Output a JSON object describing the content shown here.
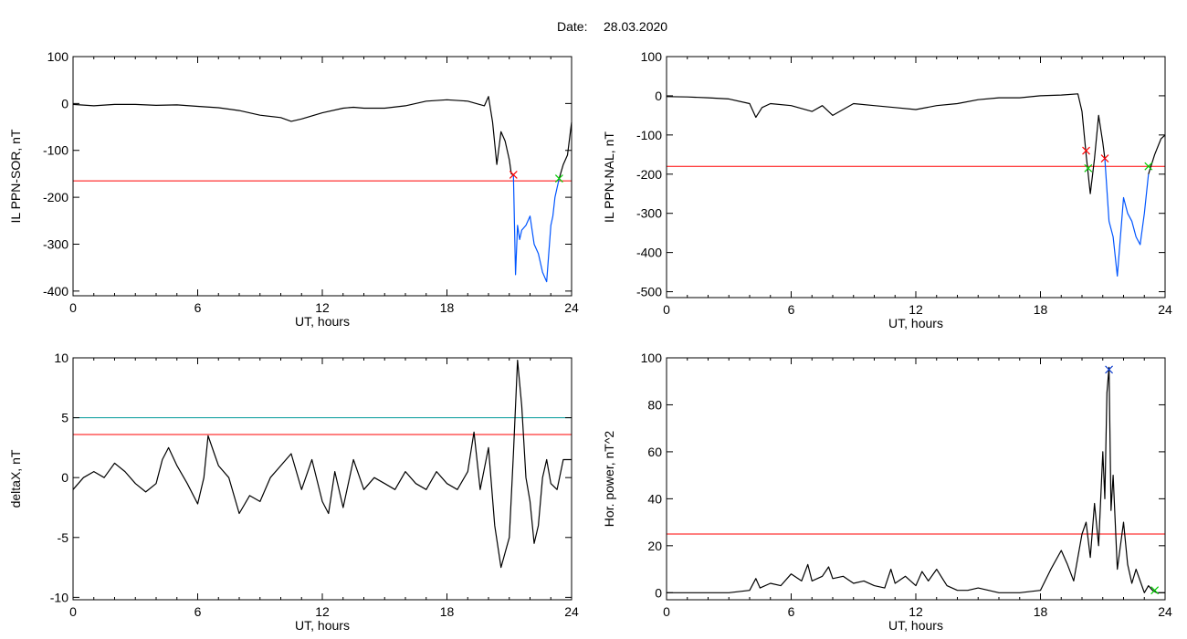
{
  "title": {
    "label": "Date:",
    "value": "28.03.2020"
  },
  "chart_data": [
    {
      "id": "sor",
      "type": "line",
      "ylabel": "IL PPN-SOR, nT",
      "xlabel": "UT, hours",
      "xlim": [
        0,
        24
      ],
      "ylim": [
        -410,
        100
      ],
      "xticks": [
        0,
        6,
        12,
        18,
        24
      ],
      "yticks": [
        100,
        0,
        -100,
        -200,
        -300,
        -400
      ],
      "xtick_labels": [
        "0",
        "6",
        "12",
        "18",
        "24"
      ],
      "ytick_labels": [
        "100",
        "0",
        "-100",
        "-200",
        "-300",
        "-400"
      ],
      "threshold": -165,
      "threshold_color": "#ff0000",
      "series": [
        {
          "color": "#000000",
          "x": [
            0,
            1,
            2,
            3,
            4,
            5,
            6,
            7,
            8,
            9,
            10,
            10.5,
            11,
            12,
            13,
            13.5,
            14,
            15,
            16,
            17,
            18,
            19,
            19.8,
            20,
            20.2,
            20.4,
            20.6,
            20.8,
            21,
            21.1,
            21.2
          ],
          "y": [
            -2,
            -5,
            -2,
            -2,
            -4,
            -3,
            -6,
            -9,
            -15,
            -25,
            -30,
            -38,
            -33,
            -20,
            -10,
            -8,
            -10,
            -10,
            -5,
            5,
            8,
            5,
            -5,
            15,
            -40,
            -130,
            -60,
            -80,
            -120,
            -150,
            -152
          ]
        },
        {
          "color": "#0055ff",
          "x": [
            21.2,
            21.3,
            21.4,
            21.5,
            21.6,
            21.8,
            22,
            22.2,
            22.4,
            22.6,
            22.8,
            23,
            23.1,
            23.2,
            23.3,
            23.4
          ],
          "y": [
            -152,
            -365,
            -260,
            -290,
            -270,
            -260,
            -240,
            -300,
            -320,
            -360,
            -380,
            -260,
            -240,
            -200,
            -180,
            -160
          ]
        },
        {
          "color": "#000000",
          "x": [
            23.4,
            23.6,
            23.8,
            24
          ],
          "y": [
            -160,
            -130,
            -110,
            -40
          ]
        }
      ],
      "markers": [
        {
          "x": 21.2,
          "y": -152,
          "color": "#ff0000"
        },
        {
          "x": 23.4,
          "y": -160,
          "color": "#00cc00"
        }
      ]
    },
    {
      "id": "nal",
      "type": "line",
      "ylabel": "IL PPN-NAL, nT",
      "xlabel": "UT, hours",
      "xlim": [
        0,
        24
      ],
      "ylim": [
        -515,
        100
      ],
      "xticks": [
        0,
        6,
        12,
        18,
        24
      ],
      "yticks": [
        100,
        0,
        -100,
        -200,
        -300,
        -400,
        -500
      ],
      "xtick_labels": [
        "0",
        "6",
        "12",
        "18",
        "24"
      ],
      "ytick_labels": [
        "100",
        "0",
        "-100",
        "-200",
        "-300",
        "-400",
        "-500"
      ],
      "threshold": -180,
      "threshold_color": "#ff0000",
      "series": [
        {
          "color": "#000000",
          "x": [
            0,
            1,
            2,
            3,
            4,
            4.3,
            4.6,
            5,
            6,
            7,
            7.5,
            8,
            9,
            10,
            11,
            12,
            13,
            14,
            15,
            16,
            17,
            18,
            19,
            19.8,
            20,
            20.2,
            20.4,
            20.6,
            20.8,
            21,
            21.1
          ],
          "y": [
            -2,
            -3,
            -5,
            -8,
            -20,
            -55,
            -30,
            -20,
            -25,
            -40,
            -25,
            -50,
            -20,
            -25,
            -30,
            -35,
            -25,
            -20,
            -10,
            -5,
            -5,
            0,
            2,
            5,
            -40,
            -150,
            -250,
            -160,
            -50,
            -120,
            -160
          ]
        },
        {
          "color": "#0055ff",
          "x": [
            21.1,
            21.3,
            21.5,
            21.7,
            22,
            22.2,
            22.4,
            22.6,
            22.8,
            23,
            23.2
          ],
          "y": [
            -160,
            -320,
            -360,
            -460,
            -260,
            -300,
            -320,
            -360,
            -380,
            -300,
            -200
          ]
        },
        {
          "color": "#000000",
          "x": [
            23.2,
            23.5,
            23.8,
            24
          ],
          "y": [
            -200,
            -150,
            -110,
            -100
          ]
        }
      ],
      "markers": [
        {
          "x": 20.2,
          "y": -140,
          "color": "#ff0000"
        },
        {
          "x": 21.1,
          "y": -160,
          "color": "#ff0000"
        },
        {
          "x": 20.3,
          "y": -185,
          "color": "#00cc00"
        },
        {
          "x": 23.2,
          "y": -180,
          "color": "#00cc00"
        }
      ]
    },
    {
      "id": "deltax",
      "type": "line",
      "ylabel": "deltaX, nT",
      "xlabel": "UT, hours",
      "xlim": [
        0,
        24
      ],
      "ylim": [
        -10.2,
        10
      ],
      "xticks": [
        0,
        6,
        12,
        18,
        24
      ],
      "yticks": [
        10,
        5,
        0,
        -5,
        -10
      ],
      "xtick_labels": [
        "0",
        "6",
        "12",
        "18",
        "24"
      ],
      "ytick_labels": [
        "10",
        "5",
        "0",
        "-5",
        "-10"
      ],
      "hlines": [
        {
          "y": 5,
          "color": "#009999"
        },
        {
          "y": 3.6,
          "color": "#ff0000"
        }
      ],
      "series": [
        {
          "color": "#000000",
          "x": [
            0,
            0.5,
            1,
            1.5,
            2,
            2.5,
            3,
            3.5,
            4,
            4.3,
            4.6,
            5,
            5.5,
            6,
            6.3,
            6.5,
            6.8,
            7,
            7.5,
            8,
            8.5,
            9,
            9.5,
            10,
            10.5,
            11,
            11.5,
            12,
            12.3,
            12.6,
            13,
            13.5,
            14,
            14.5,
            15,
            15.5,
            16,
            16.5,
            17,
            17.5,
            18,
            18.5,
            19,
            19.3,
            19.6,
            20,
            20.3,
            20.6,
            21,
            21.2,
            21.4,
            21.6,
            21.8,
            22,
            22.2,
            22.4,
            22.6,
            22.8,
            23,
            23.3,
            23.6,
            24
          ],
          "y": [
            -1,
            0,
            0.5,
            0,
            1.2,
            0.5,
            -0.5,
            -1.2,
            -0.5,
            1.5,
            2.5,
            1,
            -0.5,
            -2.2,
            0,
            3.5,
            2,
            1,
            0,
            -3,
            -1.5,
            -2,
            0,
            1,
            2,
            -1,
            1.5,
            -2,
            -3,
            0.5,
            -2.5,
            1.5,
            -1,
            0,
            -0.5,
            -1,
            0.5,
            -0.5,
            -1,
            0.5,
            -0.5,
            -1,
            0.5,
            3.8,
            -1,
            2.5,
            -4,
            -7.5,
            -5,
            2,
            9.8,
            6,
            0,
            -2,
            -5.5,
            -4,
            0,
            1.5,
            -0.5,
            -1,
            1.5,
            1.5
          ]
        }
      ],
      "markers": []
    },
    {
      "id": "power",
      "type": "line",
      "ylabel": "Hor. power, nT^2",
      "xlabel": "UT, hours",
      "xlim": [
        0,
        24
      ],
      "ylim": [
        -3,
        100
      ],
      "xticks": [
        0,
        6,
        12,
        18,
        24
      ],
      "yticks": [
        100,
        80,
        60,
        40,
        20,
        0
      ],
      "xtick_labels": [
        "0",
        "6",
        "12",
        "18",
        "24"
      ],
      "ytick_labels": [
        "100",
        "80",
        "60",
        "40",
        "20",
        "0"
      ],
      "threshold": 25,
      "threshold_color": "#ff0000",
      "series": [
        {
          "color": "#000000",
          "x": [
            0,
            1,
            2,
            3,
            4,
            4.3,
            4.5,
            5,
            5.5,
            6,
            6.5,
            6.8,
            7,
            7.5,
            7.8,
            8,
            8.5,
            9,
            9.5,
            10,
            10.5,
            10.8,
            11,
            11.5,
            12,
            12.3,
            12.6,
            13,
            13.5,
            14,
            14.5,
            15,
            16,
            17,
            18,
            18.5,
            19,
            19.3,
            19.6,
            20,
            20.2,
            20.4,
            20.6,
            20.8,
            21,
            21.1,
            21.2,
            21.3,
            21.4,
            21.5,
            21.7,
            22,
            22.2,
            22.4,
            22.6,
            23,
            23.2,
            23.4,
            23.6,
            24
          ],
          "y": [
            0,
            0,
            0,
            0,
            1,
            6,
            2,
            4,
            3,
            8,
            5,
            12,
            5,
            7,
            11,
            6,
            7,
            4,
            5,
            3,
            2,
            10,
            4,
            7,
            3,
            9,
            5,
            10,
            3,
            1,
            1,
            2,
            0,
            0,
            1,
            10,
            18,
            12,
            5,
            25,
            30,
            15,
            38,
            20,
            60,
            40,
            85,
            96,
            35,
            50,
            10,
            30,
            12,
            4,
            10,
            0,
            3,
            1,
            0,
            0
          ]
        }
      ],
      "markers": [
        {
          "x": 21.3,
          "y": 95,
          "color": "#0033cc"
        },
        {
          "x": 23.5,
          "y": 1,
          "color": "#00cc00"
        }
      ]
    }
  ]
}
